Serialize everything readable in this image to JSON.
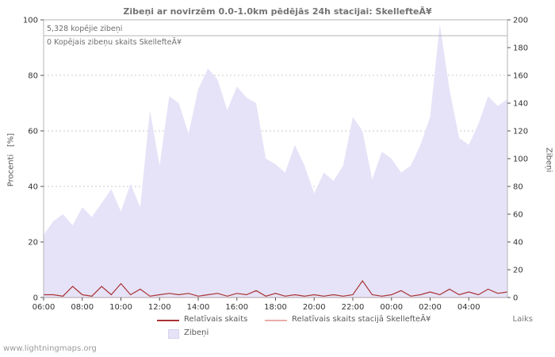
{
  "title": "Zibeņi ar novirzēm 0.0-1.0km pēdējās 24h stacijai: SkellefteÃ¥",
  "annotations": {
    "total": "5,328 kopējie zibeņi",
    "station_total": "0 Kopējais zibeņu skaits SkellefteÃ¥"
  },
  "axes": {
    "left_title": "Procenti   [%]",
    "right_title": "Zibeņi",
    "x_title": "Laiks"
  },
  "legend": {
    "relative": "Relatīvais skaits",
    "relative_station": "Relatīvais skaits stacijā SkellefteÃ¥",
    "zibeni": "Zibeņi"
  },
  "watermark": "www.lightningmaps.org",
  "chart_data": {
    "type": "area",
    "title": "Zibeņi ar novirzēm 0.0-1.0km pēdējās 24h stacijai: SkellefteÃ¥",
    "xlabel": "Laiks",
    "ylabel_left": "Procenti [%]",
    "ylabel_right": "Zibeņi",
    "x_range": [
      0,
      24
    ],
    "left_range": [
      0,
      100
    ],
    "right_range": [
      0,
      200
    ],
    "left_ticks": [
      0,
      20,
      40,
      60,
      80,
      100
    ],
    "right_ticks": [
      0,
      20,
      40,
      60,
      80,
      100,
      120,
      140,
      160,
      180,
      200
    ],
    "x_ticks": [
      {
        "h": 0,
        "label": "06:00"
      },
      {
        "h": 2,
        "label": "08:00"
      },
      {
        "h": 4,
        "label": "10:00"
      },
      {
        "h": 6,
        "label": "12:00"
      },
      {
        "h": 8,
        "label": "14:00"
      },
      {
        "h": 10,
        "label": "16:00"
      },
      {
        "h": 12,
        "label": "18:00"
      },
      {
        "h": 14,
        "label": "20:00"
      },
      {
        "h": 16,
        "label": "22:00"
      },
      {
        "h": 18,
        "label": "00:00"
      },
      {
        "h": 20,
        "label": "02:00"
      },
      {
        "h": 22,
        "label": "04:00"
      }
    ],
    "colors": {
      "area": "#e6e3f8",
      "relative": "#aa3333",
      "station": "#eaabab",
      "grid": "#c9c9c9",
      "border": "#b4b4b4"
    },
    "x": [
      0,
      0.5,
      1,
      1.5,
      2,
      2.5,
      3,
      3.5,
      4,
      4.5,
      5,
      5.5,
      6,
      6.5,
      7,
      7.5,
      8,
      8.5,
      9,
      9.5,
      10,
      10.5,
      11,
      11.5,
      12,
      12.5,
      13,
      13.5,
      14,
      14.5,
      15,
      15.5,
      16,
      16.5,
      17,
      17.5,
      18,
      18.5,
      19,
      19.5,
      20,
      20.5,
      21,
      21.5,
      22,
      22.5,
      23,
      23.5,
      24
    ],
    "series": [
      {
        "name": "Zibeņi",
        "type": "area",
        "axis": "right",
        "values": [
          45,
          55,
          60,
          52,
          65,
          58,
          68,
          78,
          62,
          82,
          65,
          135,
          95,
          145,
          140,
          118,
          150,
          165,
          157,
          135,
          152,
          144,
          140,
          100,
          96,
          90,
          110,
          95,
          75,
          90,
          84,
          95,
          130,
          120,
          85,
          105,
          100,
          90,
          95,
          110,
          130,
          197,
          150,
          115,
          110,
          125,
          145,
          138,
          143
        ]
      },
      {
        "name": "Relatīvais skaits",
        "type": "line",
        "axis": "left",
        "values": [
          1,
          1,
          0.5,
          4,
          1,
          0.5,
          4,
          1,
          5,
          1,
          3,
          0.5,
          1,
          1.5,
          1,
          1.5,
          0.5,
          1,
          1.5,
          0.5,
          1.5,
          1,
          2.5,
          0.5,
          1.5,
          0.5,
          1,
          0.5,
          1,
          0.5,
          1,
          0.5,
          1,
          6,
          1,
          0.5,
          1,
          2.5,
          0.5,
          1,
          2,
          1,
          3,
          1,
          2,
          1,
          3,
          1.5,
          2
        ]
      },
      {
        "name": "Relatīvais skaits stacijā SkellefteÃ¥",
        "type": "line",
        "axis": "left",
        "values": [
          0,
          0,
          0,
          0,
          0,
          0,
          0,
          0,
          0,
          0,
          0,
          0,
          0,
          0,
          0,
          0,
          0,
          0,
          0,
          0,
          0,
          0,
          0,
          0,
          0,
          0,
          0,
          0,
          0,
          0,
          0,
          0,
          0,
          0,
          0,
          0,
          0,
          0,
          0,
          0,
          0,
          0,
          0,
          0,
          0,
          0,
          0,
          0,
          0
        ]
      }
    ],
    "legend_position": "bottom",
    "grid": true
  }
}
